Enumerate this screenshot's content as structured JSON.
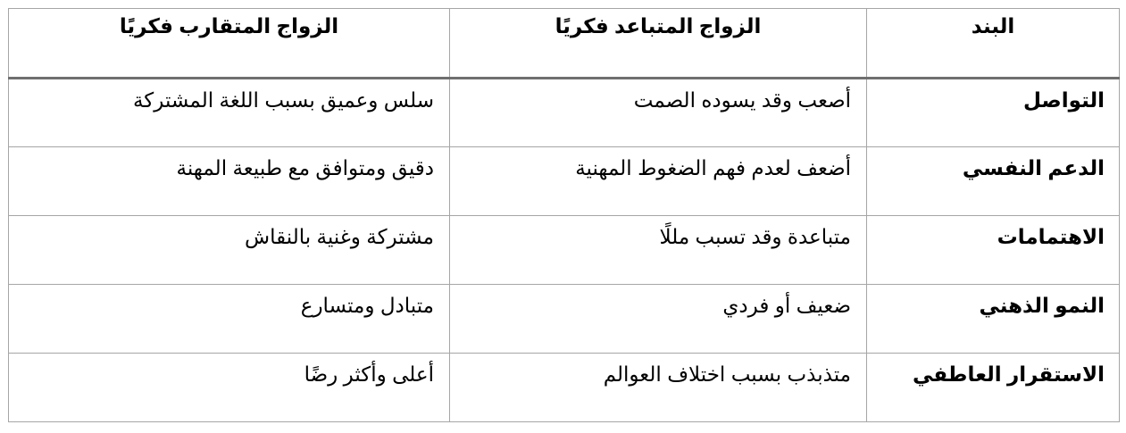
{
  "table": {
    "headers": [
      "البند",
      "الزواج المتباعد فكريًا",
      "الزواج المتقارب فكريًا"
    ],
    "rows": [
      [
        "التواصل",
        "أصعب وقد يسوده الصمت",
        "سلس وعميق بسبب اللغة المشتركة"
      ],
      [
        "الدعم النفسي",
        "أضعف لعدم فهم الضغوط المهنية",
        "دقيق ومتوافق مع طبيعة المهنة"
      ],
      [
        "الاهتمامات",
        "متباعدة وقد تسبب مللًا",
        "مشتركة وغنية بالنقاش"
      ],
      [
        "النمو الذهني",
        "ضعيف أو فردي",
        "متبادل ومتسارع"
      ],
      [
        "الاستقرار العاطفي",
        "متذبذب بسبب اختلاف العوالم",
        "أعلى وأكثر رضًا"
      ]
    ]
  }
}
